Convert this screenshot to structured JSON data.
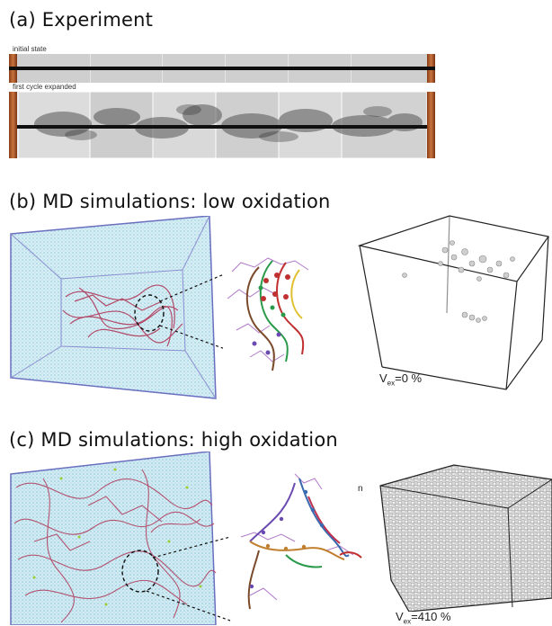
{
  "panels": {
    "a": {
      "title": "(a) Experiment",
      "strip1_label": "initial state",
      "strip2_label": "first cycle expanded"
    },
    "b": {
      "title": "(b) MD simulations: low oxidation",
      "vex_symbol": "V",
      "vex_sub": "ex",
      "vex_value": "=0 %"
    },
    "c": {
      "title": "(c) MD simulations: high oxidation",
      "vex_symbol": "V",
      "vex_sub": "ex",
      "vex_value": "=410 %",
      "corner_mark": "n"
    }
  },
  "colors": {
    "water": "#bfe3ef",
    "box_edge": "#6a6fc0",
    "polymer": "#b03a5b",
    "wire": "#111111",
    "copper": "#b8652f"
  }
}
